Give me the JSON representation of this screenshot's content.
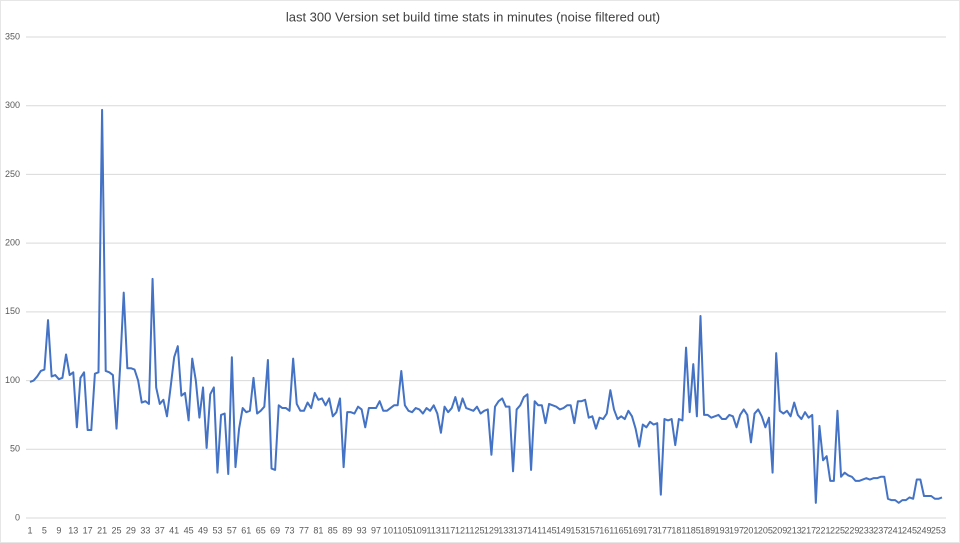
{
  "chart_data": {
    "type": "line",
    "title": "last 300 Version set build time stats in minutes (noise filtered out)",
    "color": "#4472c4",
    "grid": true,
    "ylim": [
      0,
      350
    ],
    "yticks": [
      0,
      50,
      100,
      150,
      200,
      250,
      300,
      350
    ],
    "xlim": [
      1,
      254
    ],
    "xticks": [
      1,
      5,
      9,
      13,
      17,
      21,
      25,
      29,
      33,
      37,
      41,
      45,
      49,
      53,
      57,
      61,
      65,
      69,
      73,
      77,
      81,
      85,
      89,
      93,
      97,
      101,
      105,
      109,
      113,
      117,
      121,
      125,
      129,
      133,
      137,
      141,
      145,
      149,
      153,
      157,
      161,
      165,
      169,
      173,
      177,
      181,
      185,
      189,
      193,
      197,
      201,
      205,
      209,
      213,
      217,
      221,
      225,
      229,
      233,
      237,
      241,
      245,
      249,
      253
    ],
    "x": [
      1,
      2,
      3,
      4,
      5,
      6,
      7,
      8,
      9,
      10,
      11,
      12,
      13,
      14,
      15,
      16,
      17,
      18,
      19,
      20,
      21,
      22,
      23,
      24,
      25,
      26,
      27,
      28,
      29,
      30,
      31,
      32,
      33,
      34,
      35,
      36,
      37,
      38,
      39,
      40,
      41,
      42,
      43,
      44,
      45,
      46,
      47,
      48,
      49,
      50,
      51,
      52,
      53,
      54,
      55,
      56,
      57,
      58,
      59,
      60,
      61,
      62,
      63,
      64,
      65,
      66,
      67,
      68,
      69,
      70,
      71,
      72,
      73,
      74,
      75,
      76,
      77,
      78,
      79,
      80,
      81,
      82,
      83,
      84,
      85,
      86,
      87,
      88,
      89,
      90,
      91,
      92,
      93,
      94,
      95,
      96,
      97,
      98,
      99,
      100,
      101,
      102,
      103,
      104,
      105,
      106,
      107,
      108,
      109,
      110,
      111,
      112,
      113,
      114,
      115,
      116,
      117,
      118,
      119,
      120,
      121,
      122,
      123,
      124,
      125,
      126,
      127,
      128,
      129,
      130,
      131,
      132,
      133,
      134,
      135,
      136,
      137,
      138,
      139,
      140,
      141,
      142,
      143,
      144,
      145,
      146,
      147,
      148,
      149,
      150,
      151,
      152,
      153,
      154,
      155,
      156,
      157,
      158,
      159,
      160,
      161,
      162,
      163,
      164,
      165,
      166,
      167,
      168,
      169,
      170,
      171,
      172,
      173,
      174,
      175,
      176,
      177,
      178,
      179,
      180,
      181,
      182,
      183,
      184,
      185,
      186,
      187,
      188,
      189,
      190,
      191,
      192,
      193,
      194,
      195,
      196,
      197,
      198,
      199,
      200,
      201,
      202,
      203,
      204,
      205,
      206,
      207,
      208,
      209,
      210,
      211,
      212,
      213,
      214,
      215,
      216,
      217,
      218,
      219,
      220,
      221,
      222,
      223,
      224,
      225,
      226,
      227,
      228,
      229,
      230,
      231,
      232,
      233,
      234,
      235,
      236,
      237,
      238,
      239,
      240,
      241,
      242,
      243,
      244,
      245,
      246,
      247,
      248,
      249,
      250,
      251,
      252,
      253,
      254
    ],
    "values": [
      99,
      100,
      103,
      107,
      108,
      144,
      103,
      104,
      101,
      102,
      119,
      104,
      106,
      66,
      102,
      106,
      64,
      64,
      105,
      106,
      297,
      107,
      106,
      104,
      65,
      110,
      164,
      109,
      109,
      108,
      100,
      84,
      85,
      83,
      174,
      95,
      83,
      86,
      74,
      95,
      117,
      125,
      89,
      91,
      71,
      116,
      100,
      73,
      95,
      51,
      90,
      95,
      33,
      75,
      76,
      32,
      117,
      37,
      65,
      80,
      77,
      78,
      102,
      76,
      78,
      81,
      115,
      36,
      35,
      82,
      80,
      80,
      78,
      116,
      83,
      78,
      78,
      84,
      80,
      91,
      86,
      87,
      82,
      87,
      74,
      77,
      87,
      37,
      77,
      77,
      76,
      81,
      79,
      66,
      80,
      80,
      80,
      85,
      78,
      78,
      80,
      82,
      82,
      107,
      82,
      78,
      77,
      80,
      79,
      76,
      80,
      78,
      82,
      76,
      62,
      81,
      77,
      80,
      88,
      78,
      87,
      80,
      79,
      78,
      81,
      76,
      78,
      79,
      46,
      81,
      85,
      87,
      81,
      81,
      34,
      79,
      82,
      88,
      90,
      35,
      85,
      82,
      82,
      69,
      83,
      82,
      81,
      79,
      80,
      82,
      82,
      69,
      85,
      85,
      86,
      73,
      74,
      65,
      73,
      72,
      76,
      93,
      79,
      72,
      74,
      72,
      78,
      74,
      65,
      52,
      68,
      66,
      70,
      68,
      69,
      17,
      72,
      71,
      72,
      53,
      72,
      71,
      124,
      77,
      112,
      74,
      147,
      75,
      75,
      73,
      74,
      75,
      72,
      72,
      75,
      74,
      66,
      75,
      79,
      75,
      55,
      76,
      79,
      74,
      66,
      73,
      33,
      120,
      78,
      76,
      78,
      74,
      84,
      75,
      72,
      77,
      73,
      75,
      11,
      67,
      42,
      45,
      27,
      27,
      78,
      30,
      33,
      31,
      30,
      27,
      27,
      28,
      29,
      28,
      29,
      29,
      30,
      30,
      14,
      13,
      13,
      11,
      13,
      13,
      15,
      14,
      28,
      28,
      16,
      16,
      16,
      14,
      14,
      15
    ]
  }
}
